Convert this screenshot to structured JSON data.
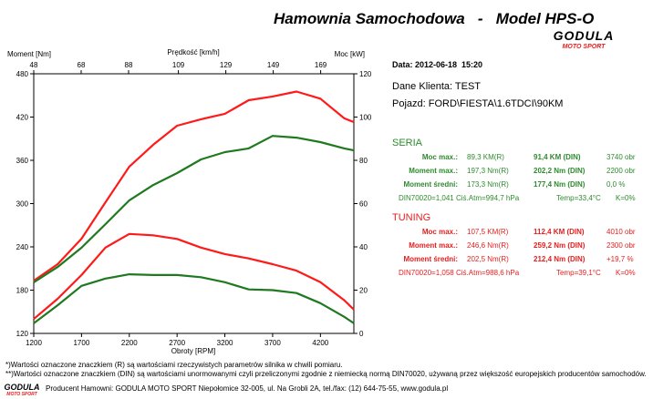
{
  "header": {
    "title": "Hamownia Samochodowa   -   Model HPS-O",
    "logo": {
      "name": "GODULA",
      "tagline": "MOTO SPORT"
    },
    "date": "Data: 2012-06-18  15:20",
    "client": "Dane Klienta: TEST",
    "vehicle": "Pojazd: FORD\\FIESTA\\1.6TDCI\\90KM"
  },
  "chart_data": {
    "type": "line",
    "xlabel": "Obroty [RPM]",
    "ylabel": "Moment [Nm]",
    "y2label": "Moc [kW]",
    "x2label": "Prędkość [km/h]",
    "x": [
      1200,
      1450,
      1700,
      1950,
      2200,
      2450,
      2700,
      2950,
      3200,
      3450,
      3700,
      3950,
      4200,
      4450,
      4550
    ],
    "xlim": [
      1200,
      4550
    ],
    "xticks": [
      1200,
      1700,
      2200,
      2700,
      3200,
      3700,
      4200
    ],
    "x2lim": [
      48,
      183
    ],
    "x2ticks": [
      48,
      68,
      88,
      109,
      129,
      149,
      169
    ],
    "ylim": [
      120,
      480
    ],
    "yticks": [
      120,
      180,
      240,
      300,
      360,
      420,
      480
    ],
    "y2lim": [
      0,
      120
    ],
    "y2ticks": [
      0,
      20,
      40,
      60,
      80,
      100,
      120
    ],
    "grid": false,
    "series": [
      {
        "color": "#ff1a1a",
        "axis": "y2",
        "values": [
          24.4,
          32.0,
          43.8,
          60.6,
          77.1,
          87.2,
          96.0,
          99.0,
          101.5,
          107.8,
          109.5,
          111.8,
          108.5,
          99.4,
          97.7
        ]
      },
      {
        "color": "#1f7a1f",
        "axis": "y2",
        "values": [
          23.6,
          30.7,
          39.6,
          50.5,
          61.5,
          68.6,
          74.1,
          80.4,
          83.8,
          85.5,
          91.3,
          90.5,
          88.4,
          85.5,
          84.6
        ]
      },
      {
        "color": "#ff1a1a",
        "values": [
          140,
          168,
          201,
          239,
          258,
          256,
          251,
          239,
          230,
          224,
          216,
          207,
          191,
          166,
          153
        ]
      },
      {
        "color": "#1f7a1f",
        "values": [
          134,
          159,
          186,
          196,
          202,
          201,
          201,
          198,
          191,
          181,
          180,
          176,
          162,
          143,
          134
        ]
      }
    ]
  },
  "results": [
    {
      "title": "SERIA",
      "color": "#2e8b2e",
      "rows": [
        [
          "Moc max.:",
          "89,3 KM(R)",
          "91,4 KM (DIN)",
          "3740 obr"
        ],
        [
          "Moment max.:",
          "197,3 Nm(R)",
          "202,2 Nm (DIN)",
          "2200 obr"
        ],
        [
          "Moment średni:",
          "173,3 Nm(R)",
          "177,4 Nm (DIN)",
          "0,0 %"
        ]
      ],
      "conditions": [
        "DIN70020=1,041",
        "Ciś.Atm=994,7 hPa",
        "Temp=33,4°C",
        "K=0%"
      ]
    },
    {
      "title": "TUNING",
      "color": "#e61e1e",
      "rows": [
        [
          "Moc max.:",
          "107,5 KM(R)",
          "112,4 KM (DIN)",
          "4010 obr"
        ],
        [
          "Moment max.:",
          "246,6 Nm(R)",
          "259,2 Nm (DIN)",
          "2300 obr"
        ],
        [
          "Moment średni:",
          "202,5 Nm(R)",
          "212,4 Nm (DIN)",
          "+19,7 %"
        ]
      ],
      "conditions": [
        "DIN70020=1,058",
        "Ciś.Atm=988,6 hPa",
        "Temp=39,1°C",
        "K=0%"
      ]
    }
  ],
  "footer": {
    "notes": [
      "*)Wartości oznaczone znaczkiem (R) są wartościami rzeczywistych parametrów silnika w chwili pomiaru.",
      "**)Wartości oznaczone znaczkiem (DIN) są wartościami unormowanymi czyli przeliczonymi zgodnie z niemiecką normą DIN70020, używaną przez większość europejskich producentów samochodów."
    ],
    "logo": {
      "name": "GODULA",
      "tagline": "MOTO SPORT"
    },
    "producer": "Producent Hamowni: GODULA MOTO SPORT Niepołomice 32-005, ul. Na Grobli 2A, tel./fax: (12) 644-75-55, www.godula.pl"
  }
}
